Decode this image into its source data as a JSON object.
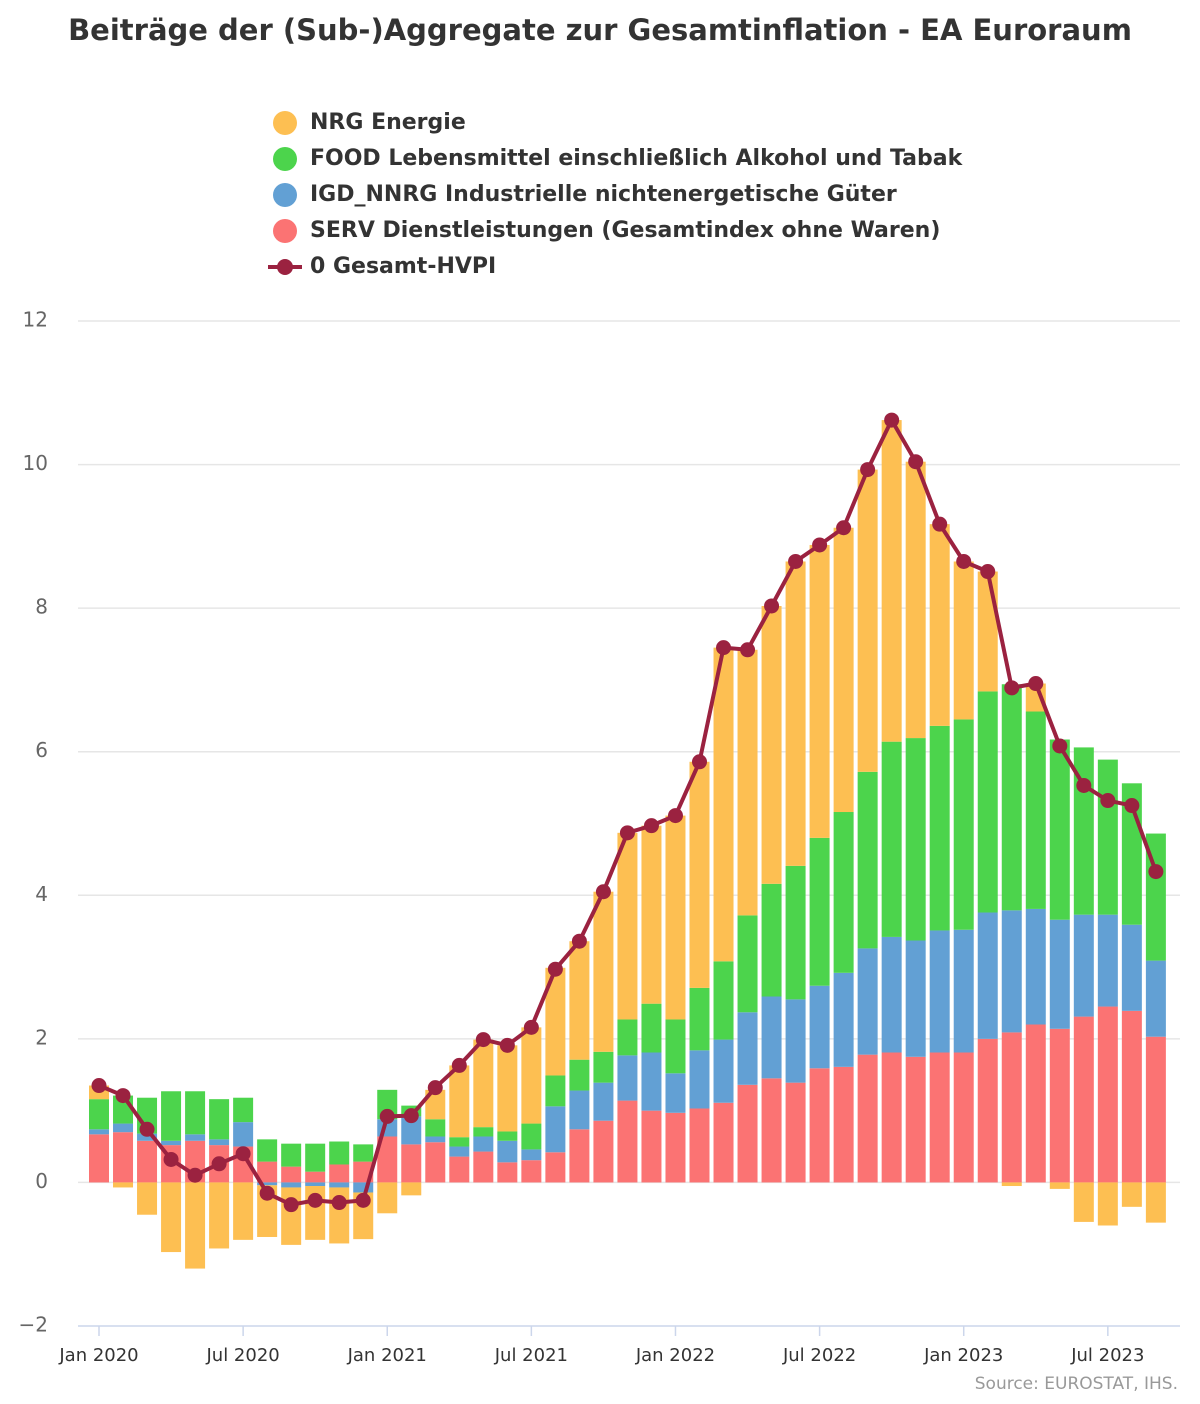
{
  "chart_data": {
    "type": "bar",
    "title": "Beiträge der (Sub-)Aggregate zur Gesamtinflation - EA Euroraum",
    "source": "Source: EUROSTAT, IHS.",
    "stacked": true,
    "grid": true,
    "categories": [
      "Jan 2020",
      null,
      null,
      null,
      null,
      null,
      "Jul 2020",
      null,
      null,
      null,
      null,
      null,
      "Jan 2021",
      null,
      null,
      null,
      null,
      null,
      "Jul 2021",
      null,
      null,
      null,
      null,
      null,
      "Jan 2022",
      null,
      null,
      null,
      null,
      null,
      "Jul 2022",
      null,
      null,
      null,
      null,
      null,
      "Jan 2023",
      null,
      null,
      null,
      null,
      null,
      "Jul 2023",
      null,
      null
    ],
    "ylim": [
      -2,
      12
    ],
    "yticks": [
      {
        "value": -2,
        "label": "−2"
      },
      0,
      2,
      4,
      6,
      8,
      10,
      12
    ],
    "series": [
      {
        "name": "NRG Energie",
        "type": "bar",
        "color": "#fdbf52",
        "values": [
          0.19,
          -0.07,
          -0.45,
          -0.97,
          -1.2,
          -0.92,
          -0.8,
          -0.72,
          -0.8,
          -0.75,
          -0.78,
          -0.65,
          -0.43,
          -0.18,
          0.41,
          1.0,
          1.22,
          1.2,
          1.34,
          1.5,
          1.65,
          2.23,
          2.6,
          2.48,
          2.84,
          3.15,
          4.37,
          3.7,
          3.87,
          4.24,
          4.08,
          3.96,
          4.21,
          4.48,
          3.85,
          2.81,
          2.2,
          1.67,
          -0.05,
          0.39,
          -0.09,
          -0.55,
          -0.6,
          -0.34,
          -0.56
        ]
      },
      {
        "name": "FOOD Lebensmittel einschließlich Alkohol und Tabak",
        "type": "bar",
        "color": "#4cd44c",
        "values": [
          0.42,
          0.39,
          0.5,
          0.69,
          0.6,
          0.56,
          0.34,
          0.31,
          0.32,
          0.39,
          0.32,
          0.24,
          0.41,
          0.15,
          0.24,
          0.13,
          0.13,
          0.13,
          0.36,
          0.43,
          0.43,
          0.43,
          0.5,
          0.68,
          0.75,
          0.87,
          1.09,
          1.35,
          1.57,
          1.86,
          2.06,
          2.24,
          2.46,
          2.72,
          2.82,
          2.85,
          2.93,
          3.08,
          3.15,
          2.75,
          2.51,
          2.33,
          2.16,
          1.97,
          1.77
        ]
      },
      {
        "name": "IGD_NNRG Industrielle nichtenergetische Güter",
        "type": "bar",
        "color": "#62a0d4",
        "values": [
          0.07,
          0.12,
          0.1,
          0.06,
          0.09,
          0.08,
          0.34,
          -0.04,
          -0.07,
          -0.05,
          -0.07,
          -0.14,
          0.24,
          0.39,
          0.08,
          0.14,
          0.21,
          0.3,
          0.15,
          0.64,
          0.54,
          0.53,
          0.63,
          0.81,
          0.55,
          0.81,
          0.88,
          1.01,
          1.14,
          1.16,
          1.15,
          1.31,
          1.48,
          1.61,
          1.62,
          1.7,
          1.71,
          1.76,
          1.7,
          1.61,
          1.52,
          1.42,
          1.28,
          1.2,
          1.06
        ]
      },
      {
        "name": "SERV Dienstleistungen (Gesamtindex ohne Waren)",
        "type": "bar",
        "color": "#fb7373",
        "values": [
          0.67,
          0.7,
          0.58,
          0.52,
          0.58,
          0.52,
          0.5,
          0.29,
          0.22,
          0.15,
          0.25,
          0.29,
          0.64,
          0.53,
          0.56,
          0.36,
          0.43,
          0.28,
          0.31,
          0.42,
          0.74,
          0.86,
          1.14,
          1.0,
          0.97,
          1.03,
          1.11,
          1.36,
          1.45,
          1.39,
          1.59,
          1.61,
          1.78,
          1.81,
          1.75,
          1.81,
          1.81,
          2.0,
          2.09,
          2.2,
          2.14,
          2.31,
          2.45,
          2.39,
          2.03
        ]
      },
      {
        "name": "0 Gesamt-HVPI",
        "type": "line",
        "color": "#9b2240",
        "values": [
          1.35,
          1.21,
          0.74,
          0.32,
          0.1,
          0.26,
          0.4,
          -0.15,
          -0.31,
          -0.25,
          -0.28,
          -0.25,
          0.92,
          0.93,
          1.32,
          1.63,
          1.99,
          1.91,
          2.16,
          2.97,
          3.36,
          4.05,
          4.87,
          4.97,
          5.11,
          5.86,
          7.45,
          7.42,
          8.03,
          8.65,
          8.88,
          9.12,
          9.93,
          10.62,
          10.04,
          9.17,
          8.65,
          8.51,
          6.89,
          6.95,
          6.08,
          5.53,
          5.32,
          5.25,
          4.33
        ]
      }
    ]
  }
}
